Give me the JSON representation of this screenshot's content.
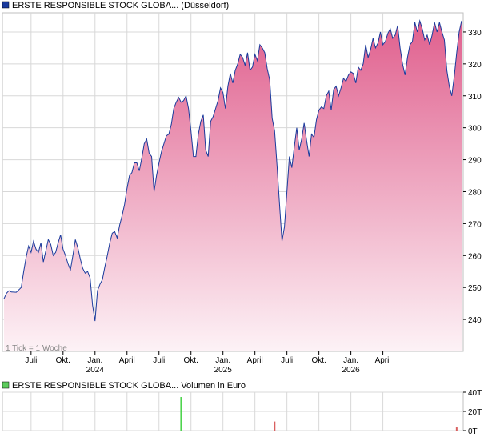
{
  "chart_data": [
    {
      "type": "area",
      "legend": "ERSTE RESPONSIBLE STOCK GLOBA... (Düsseldorf)",
      "legend_placement": "top-left",
      "note": "1 Tick = 1 Woche",
      "y_tick_labels": [
        "240",
        "250",
        "260",
        "270",
        "280",
        "290",
        "300",
        "310",
        "320",
        "330"
      ],
      "x_tick_labels": [
        {
          "label": "Juli",
          "year": ""
        },
        {
          "label": "Okt.",
          "year": ""
        },
        {
          "label": "Jan.",
          "year": "2024"
        },
        {
          "label": "April",
          "year": ""
        },
        {
          "label": "Juli",
          "year": ""
        },
        {
          "label": "Okt.",
          "year": ""
        },
        {
          "label": "Jan.",
          "year": "2025"
        },
        {
          "label": "April",
          "year": ""
        },
        {
          "label": "Juli",
          "year": ""
        },
        {
          "label": "Okt.",
          "year": ""
        },
        {
          "label": "Jan.",
          "year": "2026"
        },
        {
          "label": "April",
          "year": ""
        }
      ],
      "grid": true,
      "ylim": [
        230,
        336
      ],
      "line_color": "#1a3a9c",
      "fill_top_color": "#e0608e",
      "fill_bottom_color": "#fdf2f6",
      "points": [
        [
          0,
          246.5
        ],
        [
          1,
          248.2
        ],
        [
          2,
          249.0
        ],
        [
          3,
          248.6
        ],
        [
          5,
          248.5
        ],
        [
          7,
          250.0
        ],
        [
          8,
          255.0
        ],
        [
          9,
          259.5
        ],
        [
          10,
          263.0
        ],
        [
          11,
          261.0
        ],
        [
          12,
          264.5
        ],
        [
          13,
          262.0
        ],
        [
          14,
          261.0
        ],
        [
          15,
          264.0
        ],
        [
          16,
          258.0
        ],
        [
          17,
          261.5
        ],
        [
          18,
          265.0
        ],
        [
          19,
          263.5
        ],
        [
          20,
          260.0
        ],
        [
          21,
          261.0
        ],
        [
          22,
          264.0
        ],
        [
          23,
          266.5
        ],
        [
          24,
          262.0
        ],
        [
          25,
          260.0
        ],
        [
          26,
          257.5
        ],
        [
          27,
          255.5
        ],
        [
          28,
          260.0
        ],
        [
          29,
          265.0
        ],
        [
          30,
          262.5
        ],
        [
          31,
          259.0
        ],
        [
          32,
          256.0
        ],
        [
          33,
          254.5
        ],
        [
          34,
          255.0
        ],
        [
          35,
          253.0
        ],
        [
          36,
          244.5
        ],
        [
          37,
          239.5
        ],
        [
          38,
          249.0
        ],
        [
          39,
          251.0
        ],
        [
          40,
          252.5
        ],
        [
          41,
          256.5
        ],
        [
          42,
          260.0
        ],
        [
          43,
          264.0
        ],
        [
          44,
          267.0
        ],
        [
          45,
          267.5
        ],
        [
          46,
          265.5
        ],
        [
          47,
          269.5
        ],
        [
          48,
          272.5
        ],
        [
          49,
          276.0
        ],
        [
          50,
          281.0
        ],
        [
          51,
          285.0
        ],
        [
          52,
          286.0
        ],
        [
          53,
          289.0
        ],
        [
          54,
          289.0
        ],
        [
          55,
          286.5
        ],
        [
          56,
          290.5
        ],
        [
          57,
          295.0
        ],
        [
          58,
          296.5
        ],
        [
          59,
          292.0
        ],
        [
          60,
          291.0
        ],
        [
          61,
          280.0
        ],
        [
          62,
          285.0
        ],
        [
          63,
          289.0
        ],
        [
          64,
          292.5
        ],
        [
          65,
          295.0
        ],
        [
          66,
          297.5
        ],
        [
          67,
          298.0
        ],
        [
          68,
          301.0
        ],
        [
          69,
          306.0
        ],
        [
          70,
          308.0
        ],
        [
          71,
          309.5
        ],
        [
          72,
          308.0
        ],
        [
          73,
          308.5
        ],
        [
          74,
          310.0
        ],
        [
          75,
          306.0
        ],
        [
          76,
          299.0
        ],
        [
          77,
          291.0
        ],
        [
          78,
          291.0
        ],
        [
          79,
          298.0
        ],
        [
          80,
          302.0
        ],
        [
          81,
          304.0
        ],
        [
          82,
          293.0
        ],
        [
          83,
          291.0
        ],
        [
          84,
          302.0
        ],
        [
          85,
          303.5
        ],
        [
          86,
          306.0
        ],
        [
          87,
          308.5
        ],
        [
          88,
          312.5
        ],
        [
          89,
          311.0
        ],
        [
          90,
          306.0
        ],
        [
          91,
          313.0
        ],
        [
          92,
          317.0
        ],
        [
          93,
          314.0
        ],
        [
          94,
          318.0
        ],
        [
          95,
          320.0
        ],
        [
          96,
          323.0
        ],
        [
          97,
          322.0
        ],
        [
          98,
          319.5
        ],
        [
          99,
          323.5
        ],
        [
          100,
          318.0
        ],
        [
          101,
          319.0
        ],
        [
          102,
          323.0
        ],
        [
          103,
          321.0
        ],
        [
          104,
          326.0
        ],
        [
          105,
          325.0
        ],
        [
          106,
          323.5
        ],
        [
          107,
          318.5
        ],
        [
          108,
          315.0
        ],
        [
          109,
          303.0
        ],
        [
          110,
          299.0
        ],
        [
          111,
          288.0
        ],
        [
          112,
          276.0
        ],
        [
          113,
          264.5
        ],
        [
          114,
          269.0
        ],
        [
          115,
          280.0
        ],
        [
          116,
          291.0
        ],
        [
          117,
          287.5
        ],
        [
          118,
          294.0
        ],
        [
          119,
          300.0
        ],
        [
          120,
          293.0
        ],
        [
          121,
          296.5
        ],
        [
          122,
          301.5
        ],
        [
          123,
          296.0
        ],
        [
          124,
          291.0
        ],
        [
          125,
          298.0
        ],
        [
          126,
          297.0
        ],
        [
          127,
          302.5
        ],
        [
          128,
          305.5
        ],
        [
          129,
          306.5
        ],
        [
          130,
          306.0
        ],
        [
          131,
          310.0
        ],
        [
          132,
          311.5
        ],
        [
          133,
          305.5
        ],
        [
          134,
          312.0
        ],
        [
          135,
          313.0
        ],
        [
          136,
          310.0
        ],
        [
          137,
          312.5
        ],
        [
          138,
          315.5
        ],
        [
          139,
          314.5
        ],
        [
          140,
          316.5
        ],
        [
          141,
          317.5
        ],
        [
          142,
          317.0
        ],
        [
          143,
          314.0
        ],
        [
          144,
          319.0
        ],
        [
          145,
          318.0
        ],
        [
          146,
          320.0
        ],
        [
          147,
          326.0
        ],
        [
          148,
          322.0
        ],
        [
          149,
          324.5
        ],
        [
          150,
          328.0
        ],
        [
          151,
          325.0
        ],
        [
          152,
          326.5
        ],
        [
          153,
          330.0
        ],
        [
          154,
          326.0
        ],
        [
          155,
          327.0
        ],
        [
          156,
          329.5
        ],
        [
          157,
          331.0
        ],
        [
          158,
          328.0
        ],
        [
          159,
          329.0
        ],
        [
          160,
          332.0
        ],
        [
          161,
          325.0
        ],
        [
          162,
          320.0
        ],
        [
          163,
          316.5
        ],
        [
          164,
          322.0
        ],
        [
          165,
          326.0
        ],
        [
          166,
          327.0
        ],
        [
          167,
          333.0
        ],
        [
          168,
          330.0
        ],
        [
          169,
          333.5
        ],
        [
          170,
          331.0
        ],
        [
          171,
          327.5
        ],
        [
          172,
          329.0
        ],
        [
          173,
          326.0
        ],
        [
          174,
          329.0
        ],
        [
          175,
          333.0
        ],
        [
          176,
          330.0
        ],
        [
          177,
          333.0
        ],
        [
          178,
          330.0
        ],
        [
          179,
          327.5
        ],
        [
          180,
          318.0
        ],
        [
          181,
          313.0
        ],
        [
          182,
          310.0
        ],
        [
          183,
          316.0
        ],
        [
          184,
          323.5
        ],
        [
          185,
          330.0
        ],
        [
          186,
          333.5
        ]
      ]
    },
    {
      "type": "bar",
      "legend": "ERSTE RESPONSIBLE STOCK GLOBA... Volumen in Euro",
      "legend_placement": "top-left",
      "y_tick_labels": [
        "0T",
        "20T",
        "40T"
      ],
      "ylim": [
        0,
        40
      ],
      "grid": true,
      "bars": [
        {
          "x": 72,
          "value": 35.0,
          "color": "#4fd44f"
        },
        {
          "x": 110,
          "value": 9.5,
          "color": "#d96060"
        },
        {
          "x": 184,
          "value": 3.3,
          "color": "#d96060"
        }
      ]
    }
  ]
}
